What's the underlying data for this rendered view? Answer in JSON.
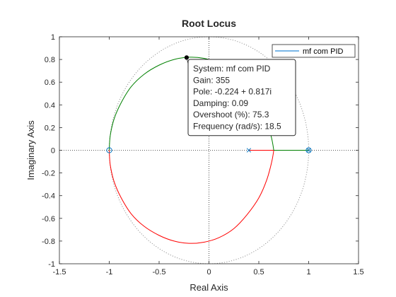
{
  "chart_data": {
    "type": "line",
    "title": "Root Locus",
    "xlabel": "Real Axis",
    "ylabel": "Imaginary Axis",
    "xlim": [
      -1.5,
      1.5
    ],
    "ylim": [
      -1,
      1
    ],
    "xticks": [
      "-1.5",
      "-1",
      "-0.5",
      "0",
      "0.5",
      "1",
      "1.5"
    ],
    "yticks": [
      "-1",
      "-0.8",
      "-0.6",
      "-0.4",
      "-0.2",
      "0",
      "0.2",
      "0.4",
      "0.6",
      "0.8",
      "1"
    ],
    "legend": {
      "label": "mf com PID",
      "color": "#4f9fdf",
      "placement": "top-right"
    },
    "colors": {
      "branch_upper": "#008000",
      "branch_lower": "#ff0000",
      "marker": "#0072bd",
      "unit_circle": "#8c8c8c"
    },
    "unit_circle": true,
    "branches": [
      {
        "color": "#008000",
        "x": [
          -1.0,
          -0.99,
          -0.95,
          -0.88,
          -0.78,
          -0.65,
          -0.5,
          -0.35,
          -0.2,
          -0.05,
          0.1,
          0.25,
          0.38,
          0.5,
          0.58,
          0.63,
          0.65
        ],
        "y": [
          0.0,
          0.13,
          0.28,
          0.42,
          0.56,
          0.67,
          0.75,
          0.8,
          0.82,
          0.81,
          0.77,
          0.69,
          0.57,
          0.42,
          0.26,
          0.1,
          0.0
        ]
      },
      {
        "color": "#ff0000",
        "x": [
          -1.0,
          -0.99,
          -0.95,
          -0.88,
          -0.78,
          -0.65,
          -0.5,
          -0.35,
          -0.2,
          -0.05,
          0.1,
          0.25,
          0.38,
          0.5,
          0.58,
          0.63,
          0.65
        ],
        "y": [
          0.0,
          -0.13,
          -0.28,
          -0.42,
          -0.56,
          -0.67,
          -0.75,
          -0.8,
          -0.82,
          -0.81,
          -0.77,
          -0.69,
          -0.57,
          -0.42,
          -0.26,
          -0.1,
          0.0
        ]
      },
      {
        "color": "#ff0000",
        "x": [
          0.4,
          0.65
        ],
        "y": [
          0.0,
          0.0
        ]
      },
      {
        "color": "#008000",
        "x": [
          0.65,
          1.0
        ],
        "y": [
          0.0,
          0.0
        ]
      }
    ],
    "poles": [
      {
        "x": 0.4,
        "y": 0
      },
      {
        "x": 1.0,
        "y": 0
      }
    ],
    "zeros": [
      {
        "x": -1.0,
        "y": 0
      },
      {
        "x": 1.0,
        "y": 0
      }
    ],
    "selected_point": {
      "x": -0.224,
      "y": 0.817
    },
    "datatip": {
      "lines": [
        "System: mf com PID",
        "Gain: 355",
        "Pole: -0.224 + 0.817i",
        "Damping: 0.09",
        "Overshoot (%): 75.3",
        "Frequency (rad/s): 18.5"
      ]
    }
  }
}
